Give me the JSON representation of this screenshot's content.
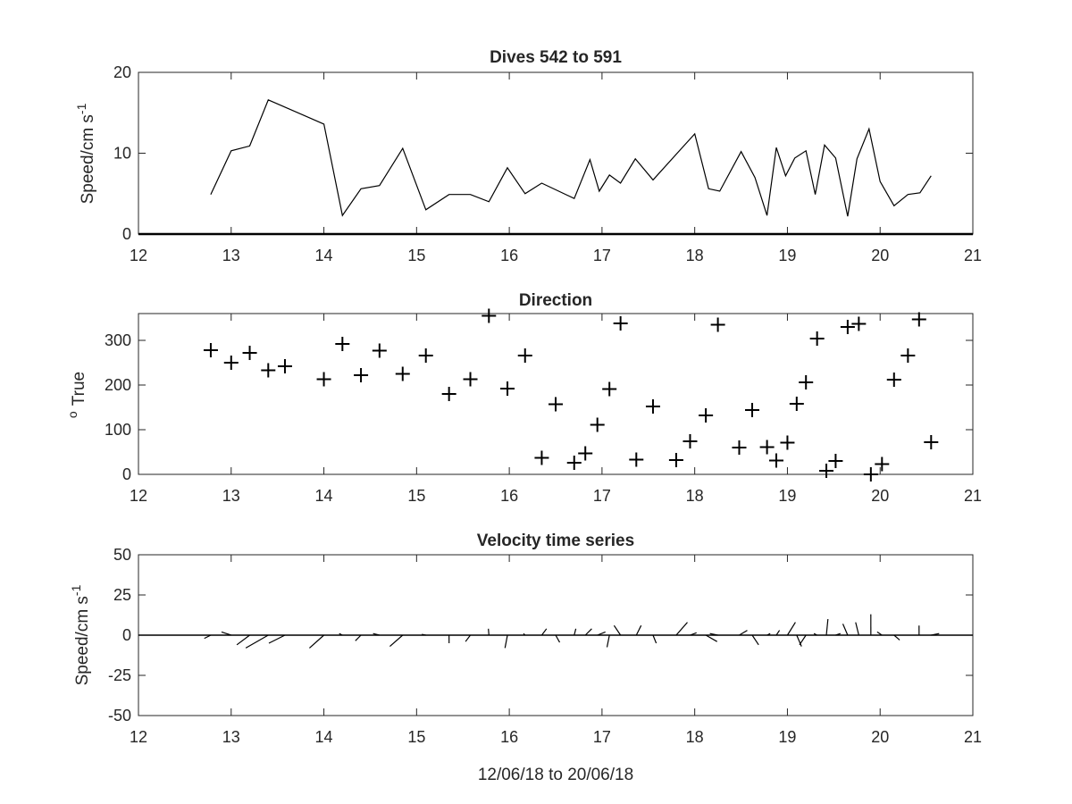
{
  "chart_data": [
    {
      "type": "line",
      "title": "Dives 542 to 591",
      "xlabel": "",
      "ylabel": "Speed/cm s",
      "ylabel_sup": "-1",
      "xlim": [
        12,
        21
      ],
      "ylim": [
        0,
        20
      ],
      "xticks": [
        "12",
        "13",
        "14",
        "15",
        "16",
        "17",
        "18",
        "19",
        "20",
        "21"
      ],
      "yticks": [
        "0",
        "10",
        "20"
      ],
      "grid": false,
      "series": [
        {
          "x": [
            12.78,
            13.0,
            13.2,
            13.4,
            14.0,
            14.2,
            14.4,
            14.6,
            14.85,
            15.1,
            15.35,
            15.58,
            15.78,
            15.98,
            16.17,
            16.35,
            16.7,
            16.87,
            16.97,
            17.08,
            17.2,
            17.36,
            17.55,
            17.85,
            18.0,
            18.15,
            18.27,
            18.5,
            18.65,
            18.78,
            18.88,
            18.98,
            19.08,
            19.2,
            19.3,
            19.4,
            19.52,
            19.65,
            19.75,
            19.88,
            20.0,
            20.15,
            20.3,
            20.43,
            20.55
          ],
          "y": [
            4.9,
            10.3,
            10.9,
            16.6,
            13.6,
            2.3,
            5.6,
            6.0,
            10.6,
            3.0,
            4.9,
            4.9,
            4.0,
            8.2,
            5.0,
            6.3,
            4.4,
            9.2,
            5.3,
            7.3,
            6.3,
            9.3,
            6.7,
            10.5,
            12.4,
            5.6,
            5.3,
            10.2,
            7.0,
            2.3,
            10.7,
            7.2,
            9.4,
            10.3,
            4.9,
            11.0,
            9.4,
            2.2,
            9.3,
            13.0,
            6.5,
            3.5,
            4.9,
            5.1,
            7.2
          ]
        }
      ]
    },
    {
      "type": "scatter",
      "title": "Direction",
      "xlabel": "",
      "ylabel": "True",
      "ylabel_sup": "o",
      "xlim": [
        12,
        21
      ],
      "ylim": [
        0,
        360
      ],
      "xticks": [
        "12",
        "13",
        "14",
        "15",
        "16",
        "17",
        "18",
        "19",
        "20",
        "21"
      ],
      "yticks": [
        "0",
        "100",
        "200",
        "300"
      ],
      "grid": false,
      "marker": "+",
      "series": [
        {
          "x": [
            12.78,
            13.0,
            13.2,
            13.4,
            13.58,
            14.0,
            14.2,
            14.4,
            14.6,
            14.85,
            15.1,
            15.35,
            15.58,
            15.78,
            15.98,
            16.17,
            16.35,
            16.5,
            16.7,
            16.82,
            16.95,
            17.08,
            17.2,
            17.37,
            17.55,
            17.8,
            17.95,
            18.12,
            18.25,
            18.48,
            18.62,
            18.78,
            18.88,
            19.0,
            19.1,
            19.2,
            19.32,
            19.42,
            19.52,
            19.65,
            19.77,
            19.9,
            20.02,
            20.15,
            20.3,
            20.42,
            20.55
          ],
          "y": [
            278,
            250,
            272,
            233,
            242,
            213,
            292,
            222,
            277,
            225,
            266,
            180,
            213,
            355,
            192,
            266,
            37,
            157,
            26,
            47,
            111,
            191,
            338,
            33,
            152,
            32,
            74,
            132,
            335,
            60,
            144,
            61,
            31,
            71,
            158,
            206,
            304,
            8,
            30,
            330,
            337,
            0,
            23,
            212,
            266,
            347,
            72
          ]
        }
      ]
    },
    {
      "type": "line",
      "subtype": "stick-vector",
      "title": "Velocity time series",
      "xlabel": "12/06/18 to 20/06/18",
      "ylabel": "Speed/cm s",
      "ylabel_sup": "-1",
      "xlim": [
        12,
        21
      ],
      "ylim": [
        -50,
        50
      ],
      "xticks": [
        "12",
        "13",
        "14",
        "15",
        "16",
        "17",
        "18",
        "19",
        "20",
        "21"
      ],
      "yticks": [
        "-50",
        "-25",
        "0",
        "25",
        "50"
      ],
      "grid": false,
      "vectors": [
        {
          "x": 12.78,
          "u": -4.0,
          "v": -2.0
        },
        {
          "x": 13.0,
          "u": -6.0,
          "v": 2.0
        },
        {
          "x": 13.2,
          "u": -8.0,
          "v": -6.0
        },
        {
          "x": 13.4,
          "u": -14.0,
          "v": -8.0
        },
        {
          "x": 13.58,
          "u": -10.0,
          "v": -5.0
        },
        {
          "x": 14.0,
          "u": -9.0,
          "v": -8.0
        },
        {
          "x": 14.2,
          "u": -2.0,
          "v": 1.0
        },
        {
          "x": 14.4,
          "u": -3.5,
          "v": -3.5
        },
        {
          "x": 14.6,
          "u": -4.0,
          "v": 1.0
        },
        {
          "x": 14.85,
          "u": -8.0,
          "v": -7.0
        },
        {
          "x": 15.1,
          "u": -2.5,
          "v": 0.5
        },
        {
          "x": 15.35,
          "u": 0.0,
          "v": -5.0
        },
        {
          "x": 15.58,
          "u": -3.0,
          "v": -4.0
        },
        {
          "x": 15.78,
          "u": -0.3,
          "v": 4.0
        },
        {
          "x": 15.98,
          "u": -1.5,
          "v": -8.0
        },
        {
          "x": 16.17,
          "u": -1.0,
          "v": 1.0
        },
        {
          "x": 16.35,
          "u": 3.0,
          "v": 4.0
        },
        {
          "x": 16.5,
          "u": 2.5,
          "v": -4.5
        },
        {
          "x": 16.7,
          "u": 1.0,
          "v": 4.0
        },
        {
          "x": 16.82,
          "u": 4.0,
          "v": 4.0
        },
        {
          "x": 16.95,
          "u": 5.0,
          "v": 2.0
        },
        {
          "x": 17.08,
          "u": -1.5,
          "v": -7.5
        },
        {
          "x": 17.2,
          "u": -4.0,
          "v": 6.0
        },
        {
          "x": 17.37,
          "u": 3.0,
          "v": 6.0
        },
        {
          "x": 17.55,
          "u": 2.0,
          "v": -5.0
        },
        {
          "x": 17.8,
          "u": 7.0,
          "v": 8.0
        },
        {
          "x": 17.95,
          "u": 4.0,
          "v": 1.5
        },
        {
          "x": 18.12,
          "u": 7.0,
          "v": -4.0
        },
        {
          "x": 18.25,
          "u": -5.0,
          "v": 1.0
        },
        {
          "x": 18.48,
          "u": 5.0,
          "v": 3.0
        },
        {
          "x": 18.62,
          "u": 4.0,
          "v": -6.0
        },
        {
          "x": 18.78,
          "u": 2.0,
          "v": 1.0
        },
        {
          "x": 18.88,
          "u": 2.0,
          "v": 3.0
        },
        {
          "x": 19.0,
          "u": 5.0,
          "v": 8.0
        },
        {
          "x": 19.1,
          "u": 3.0,
          "v": -7.0
        },
        {
          "x": 19.2,
          "u": -4.0,
          "v": -6.0
        },
        {
          "x": 19.32,
          "u": -2.0,
          "v": 1.0
        },
        {
          "x": 19.42,
          "u": 1.0,
          "v": 10.0
        },
        {
          "x": 19.52,
          "u": 3.0,
          "v": 1.0
        },
        {
          "x": 19.65,
          "u": -3.0,
          "v": 7.0
        },
        {
          "x": 19.77,
          "u": -2.0,
          "v": 8.0
        },
        {
          "x": 19.9,
          "u": 0.0,
          "v": 13.0
        },
        {
          "x": 20.02,
          "u": -3.0,
          "v": 2.0
        },
        {
          "x": 20.15,
          "u": 3.5,
          "v": -3.0
        },
        {
          "x": 20.42,
          "u": 0.0,
          "v": 6.0
        },
        {
          "x": 20.55,
          "u": 5.0,
          "v": 1.0
        }
      ]
    }
  ]
}
